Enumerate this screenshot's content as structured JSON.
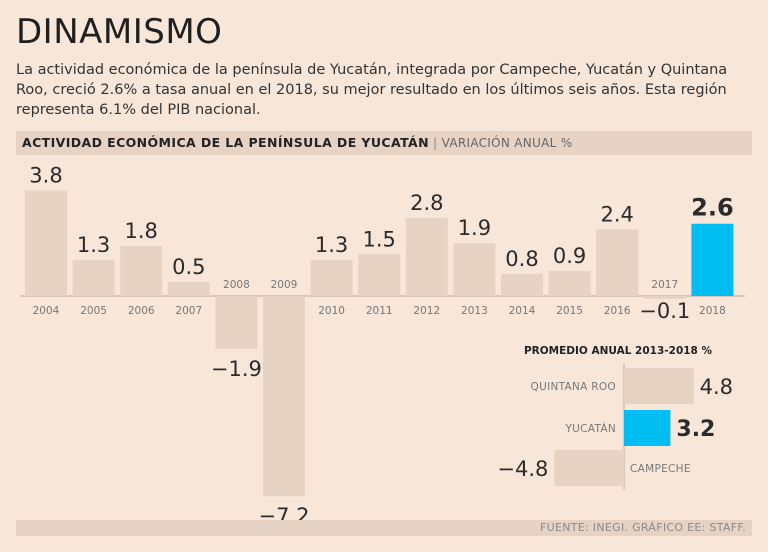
{
  "header": {
    "title": "DINAMISMO",
    "intro": "La actividad económica de la península de Yucatán, integrada por Campeche, Yucatán y Quintana Roo, creció 2.6% a tasa anual en el 2018, su mejor resultado en los últimos seis años. Esta región representa 6.1% del PIB nacional."
  },
  "chart_data": [
    {
      "type": "bar",
      "title": "ACTIVIDAD ECONÓMICA DE LA PENÍNSULA DE YUCATÁN",
      "subtitle": "VARIACIÓN ANUAL %",
      "categories": [
        "2004",
        "2005",
        "2006",
        "2007",
        "2008",
        "2009",
        "2010",
        "2011",
        "2012",
        "2013",
        "2014",
        "2015",
        "2016",
        "2017",
        "2018"
      ],
      "values": [
        3.8,
        1.3,
        1.8,
        0.5,
        -1.9,
        -7.2,
        1.3,
        1.5,
        2.8,
        1.9,
        0.8,
        0.9,
        2.4,
        -0.1,
        2.6
      ],
      "labels": [
        "3.8",
        "1.3",
        "1.8",
        "0.5",
        "−1.9",
        "−7.2",
        "1.3",
        "1.5",
        "2.8",
        "1.9",
        "0.8",
        "0.9",
        "2.4",
        "−0.1",
        "2.6"
      ],
      "highlight": "2018",
      "ylim": [
        -7.2,
        3.8
      ]
    },
    {
      "type": "bar",
      "orientation": "horizontal",
      "title": "PROMEDIO ANUAL 2013-2018 %",
      "categories": [
        "QUINTANA ROO",
        "YUCATÁN",
        "CAMPECHE"
      ],
      "values": [
        4.8,
        3.2,
        -4.8
      ],
      "labels": [
        "4.8",
        "3.2",
        "−4.8"
      ],
      "highlight": "YUCATÁN"
    }
  ],
  "colors": {
    "bar": "#e7d3c4",
    "highlight": "#00bdf2",
    "background": "#f8e6d9",
    "axis": "#b9aaa0"
  },
  "footer": {
    "source": "FUENTE: INEGI. GRÁFICO EE: STAFF."
  }
}
